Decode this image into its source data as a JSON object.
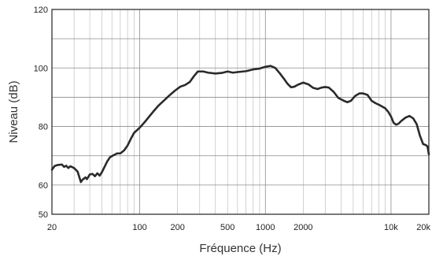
{
  "chart_data": {
    "type": "line",
    "title": "",
    "xlabel": "Fréquence (Hz)",
    "ylabel": "Niveau (dB)",
    "xscale": "log",
    "xlim": [
      20,
      20000
    ],
    "ylim": [
      50,
      120
    ],
    "x_ticks": [
      {
        "value": 20,
        "label": "20"
      },
      {
        "value": 100,
        "label": "100"
      },
      {
        "value": 200,
        "label": "200"
      },
      {
        "value": 500,
        "label": "500"
      },
      {
        "value": 1000,
        "label": "1000"
      },
      {
        "value": 2000,
        "label": "2000"
      },
      {
        "value": 10000,
        "label": "10k"
      },
      {
        "value": 20000,
        "label": "20k"
      }
    ],
    "y_ticks": [
      {
        "value": 50,
        "label": "50"
      },
      {
        "value": 60,
        "label": "60"
      },
      {
        "value": 80,
        "label": "80"
      },
      {
        "value": 100,
        "label": "100"
      },
      {
        "value": 120,
        "label": "120"
      }
    ],
    "grid": true,
    "series": [
      {
        "color": "#2a2a2a",
        "points": [
          [
            20,
            65.2
          ],
          [
            21,
            66.5
          ],
          [
            22,
            66.8
          ],
          [
            24,
            67.0
          ],
          [
            25,
            66.2
          ],
          [
            26,
            66.6
          ],
          [
            27,
            65.8
          ],
          [
            28,
            66.4
          ],
          [
            30,
            65.8
          ],
          [
            32,
            64.6
          ],
          [
            34,
            61.0
          ],
          [
            35,
            61.8
          ],
          [
            37,
            62.6
          ],
          [
            38,
            62.0
          ],
          [
            40,
            63.6
          ],
          [
            42,
            63.8
          ],
          [
            44,
            63.0
          ],
          [
            46,
            64.0
          ],
          [
            48,
            63.2
          ],
          [
            50,
            64.4
          ],
          [
            55,
            68.0
          ],
          [
            58,
            69.5
          ],
          [
            62,
            70.2
          ],
          [
            66,
            70.8
          ],
          [
            70,
            70.8
          ],
          [
            75,
            71.8
          ],
          [
            80,
            73.5
          ],
          [
            85,
            75.8
          ],
          [
            90,
            77.8
          ],
          [
            100,
            79.6
          ],
          [
            110,
            81.6
          ],
          [
            120,
            83.6
          ],
          [
            130,
            85.4
          ],
          [
            140,
            87.0
          ],
          [
            150,
            88.2
          ],
          [
            170,
            90.4
          ],
          [
            190,
            92.2
          ],
          [
            210,
            93.6
          ],
          [
            230,
            94.2
          ],
          [
            250,
            95.2
          ],
          [
            270,
            97.2
          ],
          [
            290,
            98.8
          ],
          [
            320,
            98.8
          ],
          [
            350,
            98.4
          ],
          [
            400,
            98.1
          ],
          [
            450,
            98.3
          ],
          [
            500,
            98.8
          ],
          [
            550,
            98.4
          ],
          [
            600,
            98.6
          ],
          [
            700,
            98.9
          ],
          [
            800,
            99.5
          ],
          [
            900,
            99.8
          ],
          [
            1000,
            100.4
          ],
          [
            1100,
            100.7
          ],
          [
            1200,
            100.0
          ],
          [
            1300,
            98.2
          ],
          [
            1400,
            96.4
          ],
          [
            1500,
            94.6
          ],
          [
            1600,
            93.4
          ],
          [
            1700,
            93.6
          ],
          [
            1800,
            94.2
          ],
          [
            2000,
            95.0
          ],
          [
            2200,
            94.4
          ],
          [
            2400,
            93.2
          ],
          [
            2600,
            92.8
          ],
          [
            2800,
            93.3
          ],
          [
            3000,
            93.5
          ],
          [
            3200,
            93.3
          ],
          [
            3500,
            91.8
          ],
          [
            3800,
            89.8
          ],
          [
            4200,
            88.8
          ],
          [
            4500,
            88.3
          ],
          [
            4800,
            88.8
          ],
          [
            5200,
            90.5
          ],
          [
            5600,
            91.3
          ],
          [
            6000,
            91.3
          ],
          [
            6500,
            90.8
          ],
          [
            7000,
            88.8
          ],
          [
            7500,
            88.0
          ],
          [
            8200,
            87.2
          ],
          [
            9000,
            86.2
          ],
          [
            9500,
            85.0
          ],
          [
            10000,
            83.4
          ],
          [
            10500,
            81.2
          ],
          [
            11000,
            80.6
          ],
          [
            11500,
            81.0
          ],
          [
            12000,
            81.8
          ],
          [
            13000,
            83.0
          ],
          [
            14000,
            83.6
          ],
          [
            15000,
            82.8
          ],
          [
            16000,
            80.8
          ],
          [
            17000,
            76.8
          ],
          [
            18000,
            74.0
          ],
          [
            19000,
            73.6
          ],
          [
            19500,
            73.2
          ],
          [
            20000,
            70.5
          ]
        ]
      }
    ]
  }
}
